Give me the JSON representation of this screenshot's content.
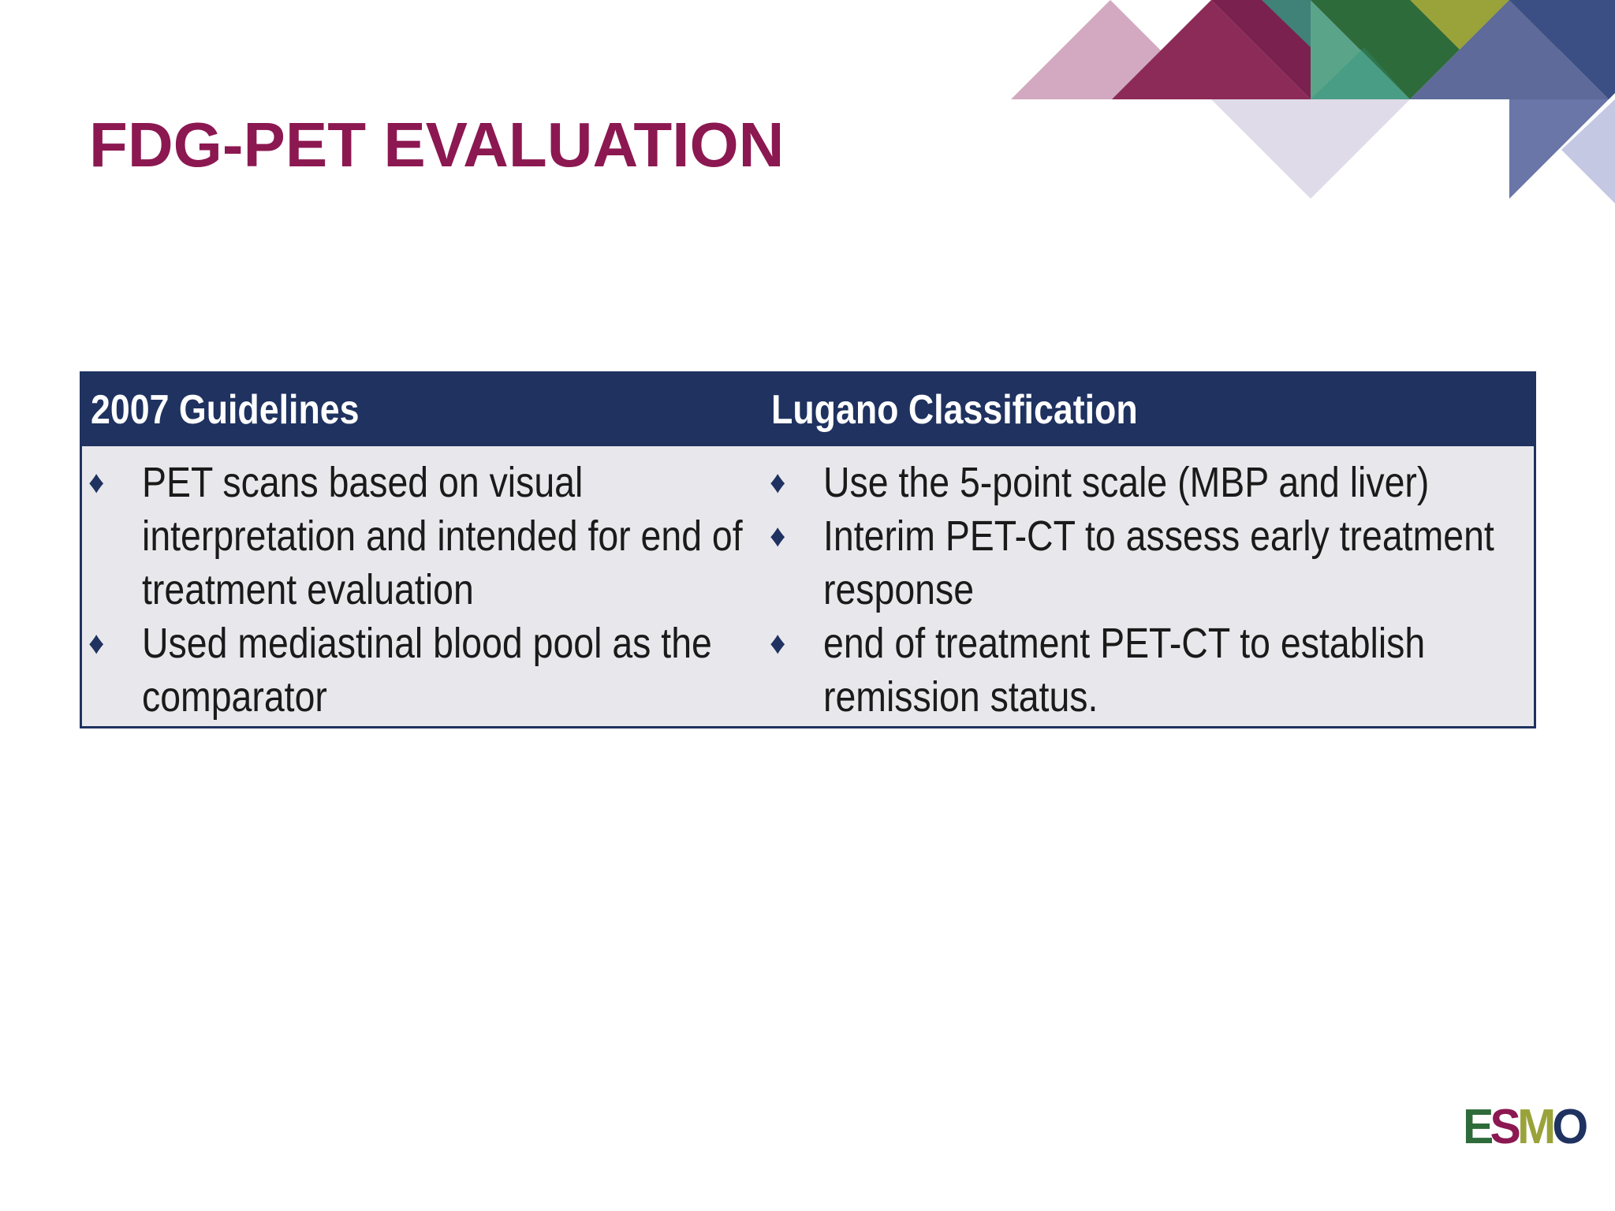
{
  "slide": {
    "title": "FDG-PET EVALUATION"
  },
  "table": {
    "columns": [
      {
        "header": "2007 Guidelines",
        "items": [
          {
            "lines": [
              "PET scans based on visual",
              "interpretation and intended for end of",
              "treatment evaluation"
            ]
          },
          {
            "lines": [
              "Used mediastinal blood pool as the",
              "comparator"
            ]
          }
        ]
      },
      {
        "header": "Lugano Classification",
        "items": [
          {
            "lines": [
              "Use the 5-point scale (MBP and liver)"
            ]
          },
          {
            "lines": [
              "Interim PET-CT  to assess early treatment",
              "response"
            ]
          },
          {
            "lines": [
              "end of treatment PET-CT to establish",
              "remission status."
            ]
          }
        ]
      }
    ],
    "bullet_glyph": "♦"
  },
  "logo": {
    "letters": [
      "E",
      "S",
      "M",
      "O"
    ],
    "letter_colors": [
      "#2e6b3a",
      "#8c1851",
      "#9aa33a",
      "#1f3260"
    ]
  },
  "colors": {
    "title": "#8c1851",
    "table_header": "#1f3260",
    "table_body": "#e8e8ec",
    "bullet": "#1f3260"
  }
}
